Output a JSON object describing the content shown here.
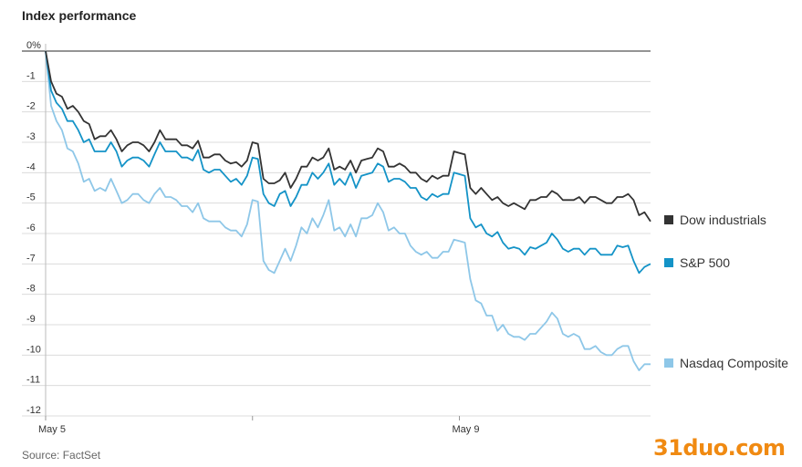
{
  "title": "Index performance",
  "source": "Source: FactSet",
  "watermark": "31duo.com",
  "chart_data": {
    "type": "line",
    "title": "Index performance",
    "xlabel": "",
    "ylabel": "",
    "ylim": [
      -12,
      0
    ],
    "yticks": [
      0,
      -1,
      -2,
      -3,
      -4,
      -5,
      -6,
      -7,
      -8,
      -9,
      -10,
      -11,
      -12
    ],
    "ytick_labels": [
      "0%",
      "-1",
      "-2",
      "-3",
      "-4",
      "-5",
      "-6",
      "-7",
      "-8",
      "-9",
      "-10",
      "-11",
      "-12"
    ],
    "xlim": [
      0,
      100
    ],
    "xticks": [
      {
        "x": 0,
        "label": "May 5"
      },
      {
        "x": 34.2,
        "label": ""
      },
      {
        "x": 68.4,
        "label": "May 9"
      }
    ],
    "grid": true,
    "legend": "right",
    "series": [
      {
        "name": "Dow industrials",
        "color": "#333333",
        "x": [
          0,
          0.9,
          1.8,
          2.7,
          3.6,
          4.5,
          5.4,
          6.3,
          7.2,
          8.1,
          9,
          9.9,
          10.8,
          11.7,
          12.6,
          13.5,
          14.4,
          15.3,
          16.2,
          17.1,
          18,
          18.9,
          19.8,
          20.7,
          21.6,
          22.5,
          23.4,
          24.3,
          25.2,
          26.1,
          27,
          27.9,
          28.8,
          29.7,
          30.6,
          31.5,
          32.4,
          33.3,
          34.2,
          35.1,
          36,
          36.9,
          37.8,
          38.7,
          39.6,
          40.5,
          41.4,
          42.3,
          43.2,
          44.1,
          45,
          45.9,
          46.8,
          47.7,
          48.6,
          49.5,
          50.4,
          51.3,
          52.2,
          53.1,
          54,
          54.9,
          55.8,
          56.7,
          57.6,
          58.5,
          59.4,
          60.3,
          61.2,
          62.1,
          63,
          63.9,
          64.8,
          65.7,
          66.6,
          67.5,
          68.4,
          69.3,
          70.2,
          71.1,
          72,
          72.9,
          73.8,
          74.7,
          75.6,
          76.5,
          77.4,
          78.3,
          79.2,
          80.1,
          81,
          81.9,
          82.8,
          83.7,
          84.6,
          85.5,
          86.4,
          87.3,
          88.2,
          89.1,
          90,
          90.9,
          91.8,
          92.7,
          93.6,
          94.5,
          95.4,
          96.3,
          97.2,
          98.1,
          99,
          100
        ],
        "values": [
          0,
          -1.0,
          -1.4,
          -1.5,
          -1.9,
          -1.8,
          -2.0,
          -2.3,
          -2.4,
          -2.9,
          -2.8,
          -2.8,
          -2.6,
          -2.9,
          -3.3,
          -3.1,
          -3.0,
          -3.0,
          -3.1,
          -3.3,
          -3.0,
          -2.6,
          -2.9,
          -2.9,
          -2.9,
          -3.1,
          -3.1,
          -3.2,
          -2.95,
          -3.5,
          -3.5,
          -3.4,
          -3.4,
          -3.6,
          -3.7,
          -3.65,
          -3.8,
          -3.6,
          -3.0,
          -3.05,
          -4.2,
          -4.35,
          -4.35,
          -4.25,
          -4.0,
          -4.5,
          -4.2,
          -3.8,
          -3.8,
          -3.5,
          -3.6,
          -3.5,
          -3.2,
          -3.9,
          -3.8,
          -3.9,
          -3.6,
          -4.0,
          -3.6,
          -3.55,
          -3.5,
          -3.2,
          -3.3,
          -3.8,
          -3.8,
          -3.7,
          -3.8,
          -4.0,
          -4.0,
          -4.2,
          -4.3,
          -4.1,
          -4.2,
          -4.1,
          -4.1,
          -3.3,
          -3.35,
          -3.4,
          -4.5,
          -4.7,
          -4.5,
          -4.7,
          -4.9,
          -4.8,
          -5.0,
          -5.1,
          -5.0,
          -5.1,
          -5.2,
          -4.9,
          -4.9,
          -4.8,
          -4.8,
          -4.6,
          -4.7,
          -4.9,
          -4.9,
          -4.9,
          -4.8,
          -5.0,
          -4.8,
          -4.8,
          -4.9,
          -5.0,
          -5.0,
          -4.8,
          -4.8,
          -4.7,
          -4.9,
          -5.4,
          -5.3,
          -5.6
        ]
      },
      {
        "name": "S&P 500",
        "color": "#1493c7",
        "x": [
          0,
          0.9,
          1.8,
          2.7,
          3.6,
          4.5,
          5.4,
          6.3,
          7.2,
          8.1,
          9,
          9.9,
          10.8,
          11.7,
          12.6,
          13.5,
          14.4,
          15.3,
          16.2,
          17.1,
          18,
          18.9,
          19.8,
          20.7,
          21.6,
          22.5,
          23.4,
          24.3,
          25.2,
          26.1,
          27,
          27.9,
          28.8,
          29.7,
          30.6,
          31.5,
          32.4,
          33.3,
          34.2,
          35.1,
          36,
          36.9,
          37.8,
          38.7,
          39.6,
          40.5,
          41.4,
          42.3,
          43.2,
          44.1,
          45,
          45.9,
          46.8,
          47.7,
          48.6,
          49.5,
          50.4,
          51.3,
          52.2,
          53.1,
          54,
          54.9,
          55.8,
          56.7,
          57.6,
          58.5,
          59.4,
          60.3,
          61.2,
          62.1,
          63,
          63.9,
          64.8,
          65.7,
          66.6,
          67.5,
          68.4,
          69.3,
          70.2,
          71.1,
          72,
          72.9,
          73.8,
          74.7,
          75.6,
          76.5,
          77.4,
          78.3,
          79.2,
          80.1,
          81,
          81.9,
          82.8,
          83.7,
          84.6,
          85.5,
          86.4,
          87.3,
          88.2,
          89.1,
          90,
          90.9,
          91.8,
          92.7,
          93.6,
          94.5,
          95.4,
          96.3,
          97.2,
          98.1,
          99,
          100
        ],
        "values": [
          0,
          -1.3,
          -1.7,
          -1.9,
          -2.3,
          -2.3,
          -2.6,
          -3.0,
          -2.9,
          -3.3,
          -3.3,
          -3.3,
          -3.0,
          -3.3,
          -3.8,
          -3.6,
          -3.5,
          -3.5,
          -3.6,
          -3.8,
          -3.4,
          -3.0,
          -3.3,
          -3.3,
          -3.3,
          -3.5,
          -3.5,
          -3.6,
          -3.25,
          -3.9,
          -4.0,
          -3.9,
          -3.9,
          -4.1,
          -4.3,
          -4.2,
          -4.4,
          -4.1,
          -3.5,
          -3.55,
          -4.7,
          -5.0,
          -5.1,
          -4.7,
          -4.6,
          -5.1,
          -4.8,
          -4.4,
          -4.4,
          -4.0,
          -4.2,
          -4.0,
          -3.7,
          -4.4,
          -4.2,
          -4.4,
          -4.0,
          -4.5,
          -4.1,
          -4.05,
          -4.0,
          -3.7,
          -3.8,
          -4.3,
          -4.2,
          -4.2,
          -4.3,
          -4.5,
          -4.5,
          -4.8,
          -4.9,
          -4.7,
          -4.8,
          -4.7,
          -4.7,
          -4.0,
          -4.05,
          -4.1,
          -5.5,
          -5.8,
          -5.7,
          -6.0,
          -6.1,
          -5.95,
          -6.3,
          -6.5,
          -6.45,
          -6.5,
          -6.7,
          -6.45,
          -6.5,
          -6.4,
          -6.3,
          -6.0,
          -6.2,
          -6.5,
          -6.6,
          -6.5,
          -6.5,
          -6.7,
          -6.5,
          -6.5,
          -6.7,
          -6.7,
          -6.7,
          -6.4,
          -6.45,
          -6.4,
          -6.9,
          -7.3,
          -7.1,
          -7.0
        ]
      },
      {
        "name": "Nasdaq Composite",
        "color": "#8ec7e8",
        "x": [
          0,
          0.9,
          1.8,
          2.7,
          3.6,
          4.5,
          5.4,
          6.3,
          7.2,
          8.1,
          9,
          9.9,
          10.8,
          11.7,
          12.6,
          13.5,
          14.4,
          15.3,
          16.2,
          17.1,
          18,
          18.9,
          19.8,
          20.7,
          21.6,
          22.5,
          23.4,
          24.3,
          25.2,
          26.1,
          27,
          27.9,
          28.8,
          29.7,
          30.6,
          31.5,
          32.4,
          33.3,
          34.2,
          35.1,
          36,
          36.9,
          37.8,
          38.7,
          39.6,
          40.5,
          41.4,
          42.3,
          43.2,
          44.1,
          45,
          45.9,
          46.8,
          47.7,
          48.6,
          49.5,
          50.4,
          51.3,
          52.2,
          53.1,
          54,
          54.9,
          55.8,
          56.7,
          57.6,
          58.5,
          59.4,
          60.3,
          61.2,
          62.1,
          63,
          63.9,
          64.8,
          65.7,
          66.6,
          67.5,
          68.4,
          69.3,
          70.2,
          71.1,
          72,
          72.9,
          73.8,
          74.7,
          75.6,
          76.5,
          77.4,
          78.3,
          79.2,
          80.1,
          81,
          81.9,
          82.8,
          83.7,
          84.6,
          85.5,
          86.4,
          87.3,
          88.2,
          89.1,
          90,
          90.9,
          91.8,
          92.7,
          93.6,
          94.5,
          95.4,
          96.3,
          97.2,
          98.1,
          99,
          100
        ],
        "values": [
          0,
          -1.8,
          -2.3,
          -2.6,
          -3.2,
          -3.3,
          -3.7,
          -4.3,
          -4.2,
          -4.6,
          -4.5,
          -4.6,
          -4.2,
          -4.6,
          -5.0,
          -4.9,
          -4.7,
          -4.7,
          -4.9,
          -5.0,
          -4.7,
          -4.5,
          -4.8,
          -4.8,
          -4.9,
          -5.1,
          -5.1,
          -5.3,
          -5.0,
          -5.5,
          -5.6,
          -5.6,
          -5.6,
          -5.8,
          -5.9,
          -5.9,
          -6.1,
          -5.7,
          -4.9,
          -4.95,
          -6.9,
          -7.2,
          -7.3,
          -6.9,
          -6.5,
          -6.9,
          -6.4,
          -5.8,
          -6.0,
          -5.5,
          -5.8,
          -5.4,
          -4.9,
          -5.9,
          -5.8,
          -6.1,
          -5.7,
          -6.1,
          -5.5,
          -5.5,
          -5.4,
          -5.0,
          -5.3,
          -5.9,
          -5.8,
          -6.0,
          -6.0,
          -6.4,
          -6.6,
          -6.7,
          -6.6,
          -6.8,
          -6.8,
          -6.6,
          -6.6,
          -6.2,
          -6.25,
          -6.3,
          -7.5,
          -8.2,
          -8.3,
          -8.7,
          -8.7,
          -9.2,
          -9.0,
          -9.3,
          -9.4,
          -9.4,
          -9.5,
          -9.3,
          -9.3,
          -9.1,
          -8.9,
          -8.6,
          -8.8,
          -9.3,
          -9.4,
          -9.3,
          -9.4,
          -9.8,
          -9.8,
          -9.7,
          -9.9,
          -10.0,
          -10.0,
          -9.8,
          -9.7,
          -9.7,
          -10.2,
          -10.5,
          -10.3,
          -10.3
        ]
      }
    ]
  }
}
